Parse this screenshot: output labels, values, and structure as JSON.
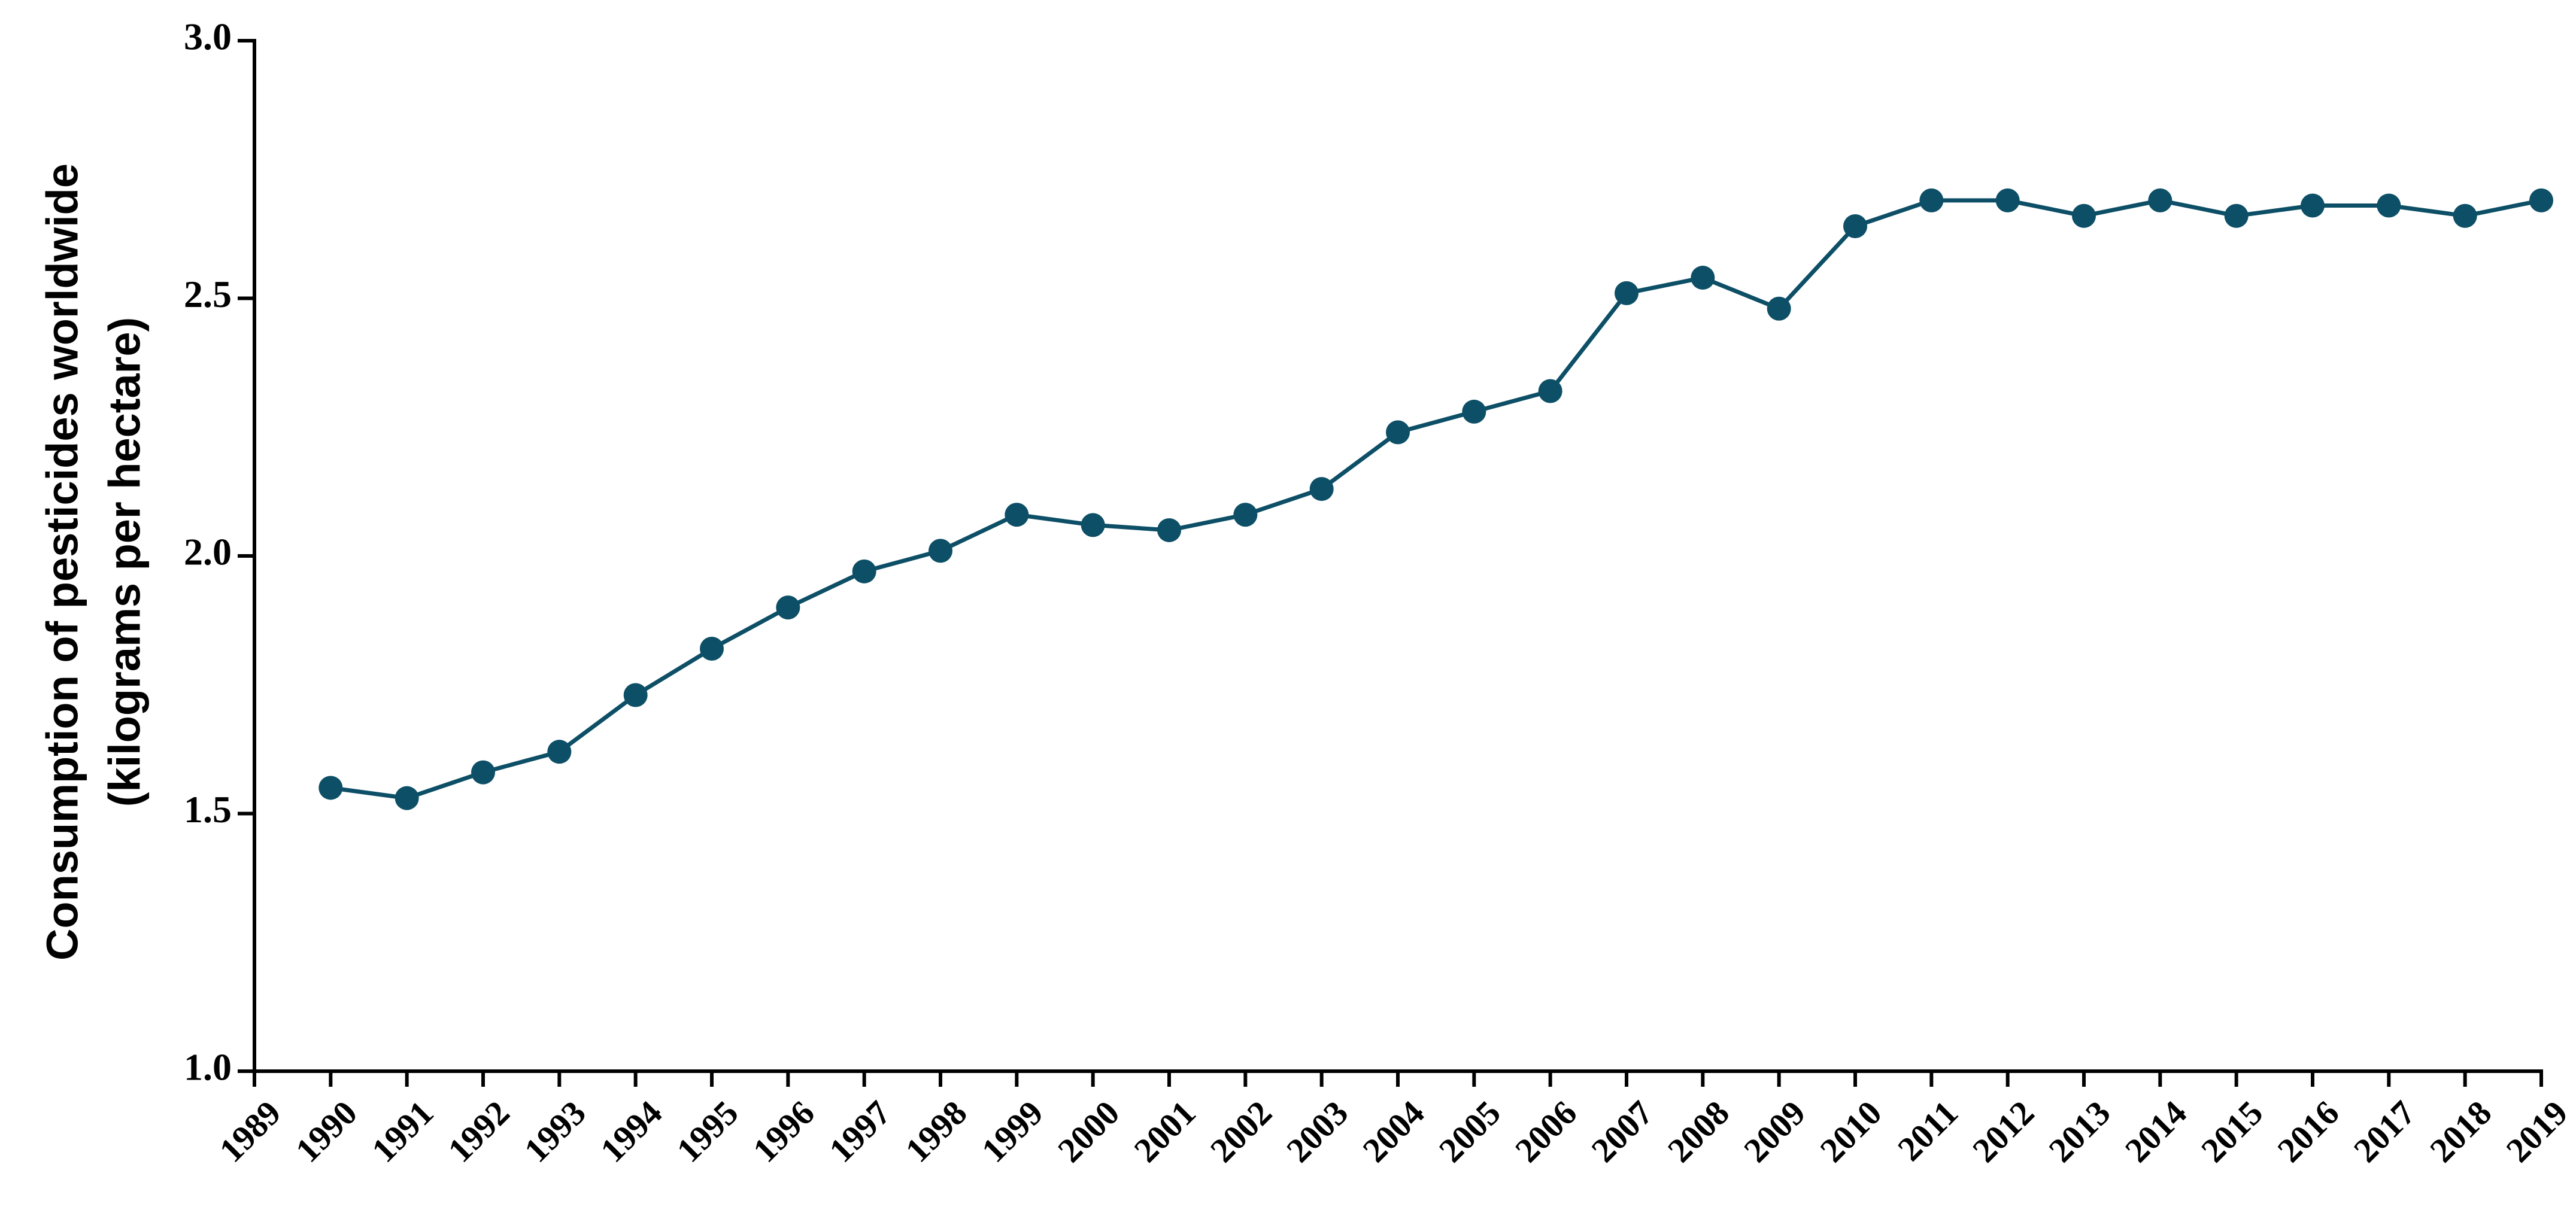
{
  "chart_data": {
    "type": "line",
    "title": "",
    "xlabel": "",
    "ylabel_lines": [
      "Consumption of pesticides worldwide",
      "(kilograms per hectare)"
    ],
    "xlim": [
      1989,
      2019
    ],
    "ylim": [
      1.0,
      3.0
    ],
    "yticks": [
      {
        "value": 1.0,
        "label": "1.0"
      },
      {
        "value": 1.5,
        "label": "1.5"
      },
      {
        "value": 2.0,
        "label": "2.0"
      },
      {
        "value": 2.5,
        "label": "2.5"
      },
      {
        "value": 3.0,
        "label": "3.0"
      }
    ],
    "xticks": [
      "1989",
      "1990",
      "1991",
      "1992",
      "1993",
      "1994",
      "1995",
      "1996",
      "1997",
      "1998",
      "1999",
      "2000",
      "2001",
      "2002",
      "2003",
      "2004",
      "2005",
      "2006",
      "2007",
      "2008",
      "2009",
      "2010",
      "2011",
      "2012",
      "2013",
      "2014",
      "2015",
      "2016",
      "2017",
      "2018",
      "2019"
    ],
    "grid": false,
    "legend": "none",
    "color": "#0d4f66",
    "series": [
      {
        "x": [
          1990,
          1991,
          1992,
          1993,
          1994,
          1995,
          1996,
          1997,
          1998,
          1999,
          2000,
          2001,
          2002,
          2003,
          2004,
          2005,
          2006,
          2007,
          2008,
          2009,
          2010,
          2011,
          2012,
          2013,
          2014,
          2015,
          2016,
          2017,
          2018,
          2019
        ],
        "values": [
          1.55,
          1.53,
          1.58,
          1.62,
          1.73,
          1.82,
          1.9,
          1.97,
          2.01,
          2.08,
          2.06,
          2.05,
          2.08,
          2.13,
          2.24,
          2.28,
          2.32,
          2.51,
          2.54,
          2.48,
          2.64,
          2.69,
          2.69,
          2.66,
          2.69,
          2.66,
          2.68,
          2.68,
          2.66,
          2.69
        ]
      }
    ]
  }
}
